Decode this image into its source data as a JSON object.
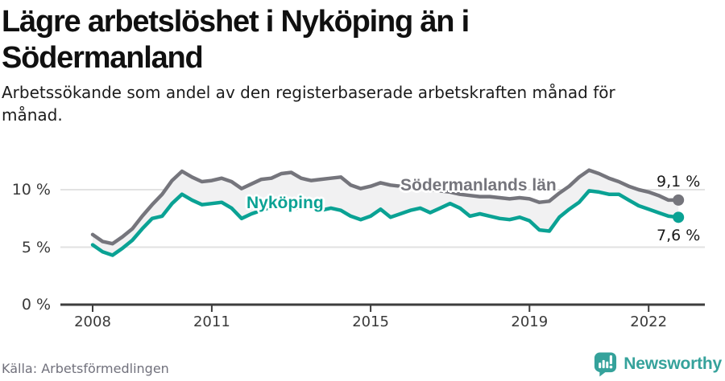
{
  "header": {
    "title": "Lägre arbetslöshet i Nyköping än i Södermanland",
    "subtitle": "Arbetssökande som andel av den registerbaserade arbetskraften månad för månad."
  },
  "chart_data": {
    "type": "line",
    "title": "Lägre arbetslöshet i Nyköping än i Södermanland",
    "xlabel": "",
    "ylabel": "",
    "xlim": [
      2008,
      2023
    ],
    "ylim": [
      0,
      12.5
    ],
    "grid": "horizontal",
    "grid_color": "#e2e2e2",
    "band_fill_between_series": "#f1f1f2",
    "axis_color": "#3d3d3d",
    "x": [
      2008.0,
      2008.25,
      2008.5,
      2008.75,
      2009.0,
      2009.25,
      2009.5,
      2009.75,
      2010.0,
      2010.25,
      2010.5,
      2010.75,
      2011.0,
      2011.25,
      2011.5,
      2011.75,
      2012.0,
      2012.25,
      2012.5,
      2012.75,
      2013.0,
      2013.25,
      2013.5,
      2013.75,
      2014.0,
      2014.25,
      2014.5,
      2014.75,
      2015.0,
      2015.25,
      2015.5,
      2015.75,
      2016.0,
      2016.25,
      2016.5,
      2016.75,
      2017.0,
      2017.25,
      2017.5,
      2017.75,
      2018.0,
      2018.25,
      2018.5,
      2018.75,
      2019.0,
      2019.25,
      2019.5,
      2019.75,
      2020.0,
      2020.25,
      2020.5,
      2020.75,
      2021.0,
      2021.25,
      2021.5,
      2021.75,
      2022.0,
      2022.25,
      2022.5,
      2022.75
    ],
    "series": [
      {
        "name": "Södermanlands län",
        "color": "#75757c",
        "end_label": "9,1 %",
        "end_value": 9.1,
        "values": [
          6.1,
          5.5,
          5.3,
          5.9,
          6.6,
          7.7,
          8.7,
          9.6,
          10.8,
          11.6,
          11.1,
          10.7,
          10.8,
          11.0,
          10.7,
          10.1,
          10.5,
          10.9,
          11.0,
          11.4,
          11.5,
          11.0,
          10.8,
          10.9,
          11.0,
          11.1,
          10.4,
          10.1,
          10.3,
          10.6,
          10.4,
          10.3,
          10.2,
          10.1,
          10.0,
          9.9,
          9.8,
          9.6,
          9.5,
          9.4,
          9.4,
          9.3,
          9.2,
          9.3,
          9.2,
          8.9,
          9.0,
          9.7,
          10.3,
          11.1,
          11.7,
          11.4,
          11.0,
          10.7,
          10.3,
          10.0,
          9.8,
          9.5,
          9.1,
          9.1
        ]
      },
      {
        "name": "Nyköping",
        "color": "#0aa294",
        "end_label": "7,6 %",
        "end_value": 7.6,
        "values": [
          5.2,
          4.6,
          4.3,
          4.9,
          5.6,
          6.6,
          7.5,
          7.7,
          8.8,
          9.6,
          9.1,
          8.7,
          8.8,
          8.9,
          8.4,
          7.5,
          7.9,
          8.2,
          8.5,
          8.6,
          8.3,
          8.5,
          8.6,
          8.2,
          8.4,
          8.2,
          7.7,
          7.4,
          7.7,
          8.3,
          7.6,
          7.9,
          8.2,
          8.4,
          8.0,
          8.4,
          8.8,
          8.4,
          7.7,
          7.9,
          7.7,
          7.5,
          7.4,
          7.6,
          7.3,
          6.5,
          6.4,
          7.6,
          8.3,
          8.9,
          9.9,
          9.8,
          9.6,
          9.6,
          9.1,
          8.6,
          8.3,
          8.0,
          7.7,
          7.6
        ]
      }
    ],
    "xticks": [
      2008,
      2011,
      2015,
      2019,
      2022
    ],
    "yticks": [
      {
        "value": 0,
        "label": "0 %"
      },
      {
        "value": 5,
        "label": "5 %"
      },
      {
        "value": 10,
        "label": "10 %"
      }
    ],
    "legend_position": "inline-labels"
  },
  "footer": {
    "source": "Källa: Arbetsförmedlingen",
    "brand": "Newsworthy",
    "brand_color": "#35a29b"
  }
}
